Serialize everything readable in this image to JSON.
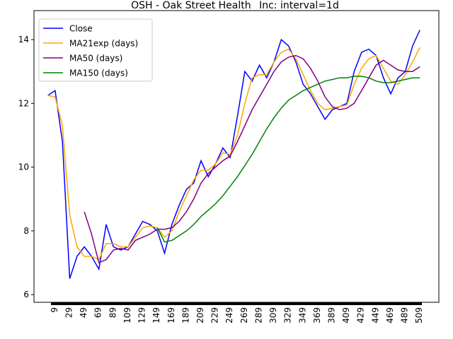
{
  "chart_data": {
    "type": "line",
    "title": "OSH - Oak Street Health_ Inc: interval=1d",
    "x": [
      0,
      10,
      20,
      30,
      40,
      50,
      60,
      70,
      80,
      90,
      100,
      110,
      120,
      130,
      140,
      150,
      160,
      170,
      180,
      190,
      200,
      210,
      220,
      230,
      240,
      250,
      260,
      270,
      280,
      290,
      300,
      310,
      320,
      330,
      340,
      350,
      360,
      370,
      380,
      390,
      400,
      410,
      420,
      430,
      440,
      450,
      460,
      470,
      480,
      490,
      500,
      510
    ],
    "series": [
      {
        "name": "Close",
        "color": "#0000ff",
        "values": [
          12.25,
          12.4,
          10.8,
          6.5,
          7.2,
          7.5,
          7.2,
          6.8,
          8.2,
          7.5,
          7.4,
          7.5,
          7.9,
          8.3,
          8.2,
          8.0,
          7.3,
          8.2,
          8.8,
          9.3,
          9.5,
          10.2,
          9.7,
          10.1,
          10.6,
          10.3,
          11.6,
          13.0,
          12.7,
          13.2,
          12.8,
          13.3,
          14.0,
          13.8,
          13.3,
          12.6,
          12.3,
          11.9,
          11.5,
          11.8,
          11.9,
          12.0,
          13.0,
          13.6,
          13.7,
          13.5,
          12.8,
          12.3,
          12.8,
          13.0,
          13.8,
          14.3
        ]
      },
      {
        "name": "MA21exp (days)",
        "color": "#ffa500",
        "values": [
          12.25,
          12.2,
          11.3,
          8.5,
          7.5,
          7.2,
          7.2,
          7.1,
          7.6,
          7.6,
          7.5,
          7.5,
          7.8,
          8.1,
          8.15,
          8.1,
          7.8,
          8.0,
          8.6,
          9.1,
          9.6,
          9.9,
          9.9,
          10.1,
          10.45,
          10.4,
          11.0,
          12.0,
          12.8,
          12.9,
          12.9,
          13.3,
          13.6,
          13.7,
          13.4,
          12.9,
          12.4,
          12.0,
          11.8,
          11.85,
          11.9,
          11.95,
          12.6,
          13.1,
          13.4,
          13.5,
          13.1,
          12.7,
          12.6,
          12.9,
          13.3,
          13.75
        ]
      },
      {
        "name": "MA50 (days)",
        "color": "#800080",
        "values": [
          null,
          null,
          null,
          null,
          null,
          8.6,
          7.9,
          7.0,
          7.1,
          7.4,
          7.45,
          7.4,
          7.7,
          7.8,
          7.9,
          8.05,
          8.05,
          8.1,
          8.3,
          8.6,
          9.0,
          9.5,
          9.8,
          10.0,
          10.2,
          10.35,
          10.8,
          11.3,
          11.8,
          12.2,
          12.6,
          13.0,
          13.3,
          13.45,
          13.5,
          13.4,
          13.1,
          12.7,
          12.2,
          11.9,
          11.8,
          11.85,
          12.0,
          12.4,
          12.8,
          13.2,
          13.35,
          13.2,
          13.05,
          13.0,
          13.0,
          13.15
        ]
      },
      {
        "name": "MA150 (days)",
        "color": "#008000",
        "values": [
          null,
          null,
          null,
          null,
          null,
          null,
          null,
          null,
          null,
          null,
          null,
          null,
          null,
          null,
          null,
          8.1,
          7.65,
          7.7,
          7.85,
          8.0,
          8.2,
          8.45,
          8.65,
          8.85,
          9.1,
          9.4,
          9.7,
          10.05,
          10.4,
          10.8,
          11.2,
          11.55,
          11.85,
          12.1,
          12.25,
          12.4,
          12.5,
          12.6,
          12.7,
          12.75,
          12.8,
          12.8,
          12.85,
          12.85,
          12.8,
          12.7,
          12.65,
          12.65,
          12.7,
          12.75,
          12.8,
          12.8
        ]
      }
    ],
    "xlim": [
      -19,
      536
    ],
    "ylim": [
      5.76,
      14.91
    ],
    "xticks": [
      9,
      29,
      49,
      69,
      89,
      109,
      129,
      149,
      169,
      189,
      209,
      229,
      249,
      269,
      289,
      309,
      329,
      349,
      369,
      389,
      409,
      429,
      449,
      469,
      489,
      509
    ],
    "yticks": [
      6,
      8,
      10,
      12,
      14
    ],
    "legend": "upper left"
  }
}
